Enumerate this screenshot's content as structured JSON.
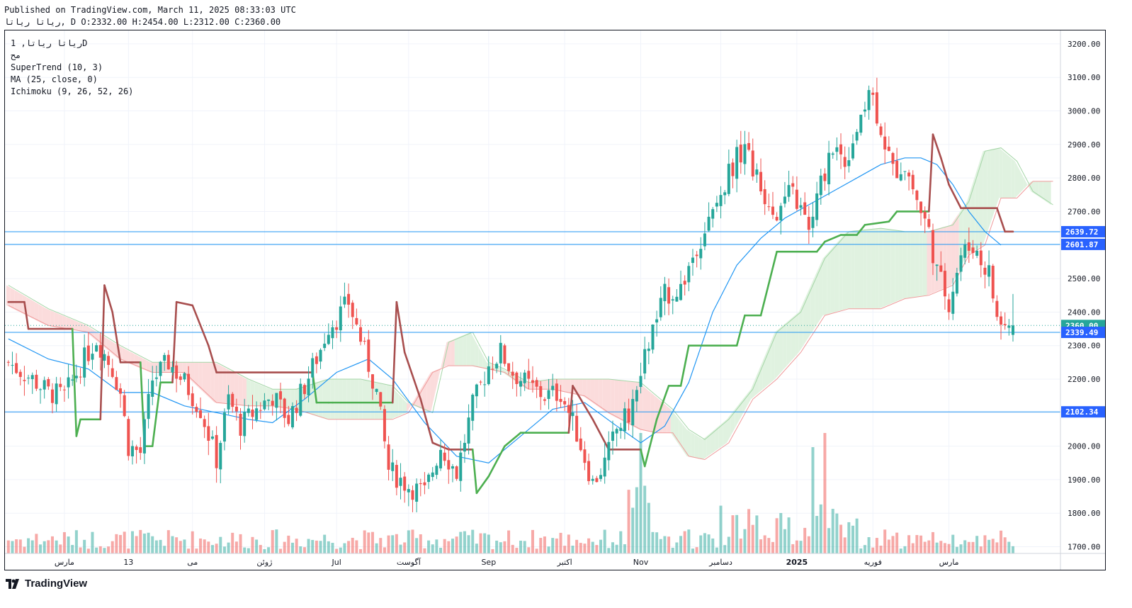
{
  "header": {
    "published": "Published on TradingView.com, March 11, 2025 08:33:03 UTC",
    "ohlc": "ریاتا ریاتا, D O:2332.00 H:2454.00 L:2312.00 C:2360.00"
  },
  "legend": {
    "symbol": "ریاتا ریاتا, 1D",
    "line2": "مح",
    "supertrend": "SuperTrend (10, 3)",
    "ma": "MA (25, close, 0)",
    "ichimoku": "Ichimoku (9, 26, 52, 26)"
  },
  "brand": "TradingView",
  "colors": {
    "up": "#26a69a",
    "down": "#ef5350",
    "supertrend_up": "#4caf50",
    "supertrend_down": "#a84e4e",
    "ma": "#2196f3",
    "hline": "#2196f3",
    "cloud_green": "#e0f2e0",
    "cloud_red": "#fbdcdc",
    "price_label": "#2962ff"
  },
  "chart_data": {
    "type": "candlestick",
    "ylim": [
      1680,
      3240
    ],
    "y_ticks": [
      "3200.00",
      "3100.00",
      "3000.00",
      "2900.00",
      "2800.00",
      "2700.00",
      "2600.00",
      "2500.00",
      "2400.00",
      "2300.00",
      "2200.00",
      "2100.00",
      "2000.00",
      "1900.00",
      "1800.00",
      "1700.00"
    ],
    "x_ticks": [
      "مارس",
      "13",
      "می",
      "ژوئن",
      "Jul",
      "آگوست",
      "Sep",
      "اکتبر",
      "Nov",
      "دسامبر",
      "2025",
      "فوریه",
      "مارس"
    ],
    "x_tick_index": [
      14,
      30,
      46,
      64,
      82,
      100,
      120,
      139,
      158,
      178,
      197,
      216,
      235
    ],
    "n_bars": 252,
    "last_ohlc": {
      "open": 2332.0,
      "high": 2454.0,
      "low": 2312.0,
      "close": 2360.0
    },
    "price_lines": [
      {
        "value": 2639.72,
        "label": "2639.72"
      },
      {
        "value": 2601.87,
        "label": "2601.87"
      },
      {
        "value": 2360.0,
        "label": "2360.00",
        "dotted": true
      },
      {
        "value": 2339.49,
        "label": "2339.49"
      },
      {
        "value": 2102.34,
        "label": "2102.34"
      }
    ],
    "close_path": [
      [
        0,
        2250
      ],
      [
        6,
        2200
      ],
      [
        10,
        2160
      ],
      [
        14,
        2150
      ],
      [
        18,
        2240
      ],
      [
        22,
        2320
      ],
      [
        26,
        2230
      ],
      [
        28,
        2160
      ],
      [
        30,
        2000
      ],
      [
        33,
        1980
      ],
      [
        36,
        2200
      ],
      [
        40,
        2250
      ],
      [
        44,
        2190
      ],
      [
        48,
        2110
      ],
      [
        52,
        1960
      ],
      [
        55,
        2140
      ],
      [
        58,
        2060
      ],
      [
        62,
        2110
      ],
      [
        66,
        2150
      ],
      [
        70,
        2080
      ],
      [
        74,
        2180
      ],
      [
        78,
        2290
      ],
      [
        80,
        2360
      ],
      [
        82,
        2380
      ],
      [
        85,
        2430
      ],
      [
        88,
        2320
      ],
      [
        92,
        2160
      ],
      [
        95,
        1930
      ],
      [
        100,
        1880
      ],
      [
        104,
        1860
      ],
      [
        108,
        2000
      ],
      [
        112,
        1920
      ],
      [
        116,
        2120
      ],
      [
        120,
        2240
      ],
      [
        123,
        2280
      ],
      [
        126,
        2220
      ],
      [
        130,
        2180
      ],
      [
        134,
        2150
      ],
      [
        138,
        2160
      ],
      [
        142,
        2040
      ],
      [
        146,
        1890
      ],
      [
        149,
        1950
      ],
      [
        152,
        2050
      ],
      [
        156,
        2110
      ],
      [
        160,
        2310
      ],
      [
        164,
        2450
      ],
      [
        168,
        2470
      ],
      [
        172,
        2600
      ],
      [
        176,
        2690
      ],
      [
        180,
        2820
      ],
      [
        184,
        2900
      ],
      [
        188,
        2760
      ],
      [
        192,
        2700
      ],
      [
        196,
        2760
      ],
      [
        200,
        2640
      ],
      [
        203,
        2780
      ],
      [
        206,
        2900
      ],
      [
        209,
        2850
      ],
      [
        212,
        2950
      ],
      [
        215,
        3080
      ],
      [
        218,
        2950
      ],
      [
        221,
        2820
      ],
      [
        224,
        2840
      ],
      [
        228,
        2700
      ],
      [
        230,
        2640
      ],
      [
        232,
        2520
      ],
      [
        235,
        2430
      ],
      [
        238,
        2570
      ],
      [
        241,
        2600
      ],
      [
        243,
        2550
      ],
      [
        245,
        2520
      ],
      [
        247,
        2380
      ],
      [
        249,
        2360
      ],
      [
        251,
        2360
      ]
    ],
    "ma_path": [
      [
        0,
        2320
      ],
      [
        10,
        2260
      ],
      [
        20,
        2230
      ],
      [
        28,
        2160
      ],
      [
        36,
        2160
      ],
      [
        44,
        2120
      ],
      [
        52,
        2100
      ],
      [
        60,
        2080
      ],
      [
        66,
        2070
      ],
      [
        74,
        2140
      ],
      [
        82,
        2220
      ],
      [
        90,
        2260
      ],
      [
        96,
        2200
      ],
      [
        104,
        2070
      ],
      [
        112,
        1970
      ],
      [
        120,
        1950
      ],
      [
        128,
        2030
      ],
      [
        136,
        2110
      ],
      [
        144,
        2130
      ],
      [
        152,
        2060
      ],
      [
        158,
        2010
      ],
      [
        164,
        2060
      ],
      [
        170,
        2190
      ],
      [
        176,
        2400
      ],
      [
        182,
        2540
      ],
      [
        188,
        2620
      ],
      [
        194,
        2680
      ],
      [
        200,
        2720
      ],
      [
        206,
        2760
      ],
      [
        212,
        2800
      ],
      [
        218,
        2840
      ],
      [
        224,
        2860
      ],
      [
        228,
        2860
      ],
      [
        232,
        2840
      ],
      [
        236,
        2780
      ],
      [
        240,
        2700
      ],
      [
        244,
        2640
      ],
      [
        248,
        2600
      ]
    ],
    "supertrend_path": [
      [
        0,
        2430,
        "d"
      ],
      [
        4,
        2430,
        "d"
      ],
      [
        5,
        2350,
        "d"
      ],
      [
        16,
        2350,
        "d"
      ],
      [
        17,
        2030,
        "u"
      ],
      [
        18,
        2080,
        "u"
      ],
      [
        23,
        2080,
        "u"
      ],
      [
        24,
        2480,
        "d"
      ],
      [
        26,
        2400,
        "d"
      ],
      [
        28,
        2250,
        "d"
      ],
      [
        33,
        2250,
        "d"
      ],
      [
        34,
        2000,
        "u"
      ],
      [
        36,
        2000,
        "u"
      ],
      [
        38,
        2190,
        "u"
      ],
      [
        41,
        2190,
        "u"
      ],
      [
        42,
        2430,
        "d"
      ],
      [
        46,
        2420,
        "d"
      ],
      [
        50,
        2300,
        "d"
      ],
      [
        52,
        2220,
        "d"
      ],
      [
        76,
        2220,
        "d"
      ],
      [
        77,
        2130,
        "u"
      ],
      [
        80,
        2130,
        "u"
      ],
      [
        81,
        2130,
        "u"
      ],
      [
        96,
        2130,
        "u"
      ],
      [
        97,
        2430,
        "d"
      ],
      [
        99,
        2280,
        "d"
      ],
      [
        103,
        2140,
        "d"
      ],
      [
        106,
        2010,
        "d"
      ],
      [
        110,
        1990,
        "d"
      ],
      [
        116,
        1990,
        "d"
      ],
      [
        117,
        1860,
        "u"
      ],
      [
        120,
        1910,
        "u"
      ],
      [
        124,
        2000,
        "u"
      ],
      [
        128,
        2040,
        "u"
      ],
      [
        140,
        2040,
        "u"
      ],
      [
        141,
        2180,
        "d"
      ],
      [
        146,
        2080,
        "d"
      ],
      [
        150,
        1990,
        "d"
      ],
      [
        158,
        1990,
        "d"
      ],
      [
        159,
        1940,
        "u"
      ],
      [
        162,
        2080,
        "u"
      ],
      [
        165,
        2180,
        "u"
      ],
      [
        168,
        2180,
        "u"
      ],
      [
        170,
        2300,
        "u"
      ],
      [
        182,
        2300,
        "u"
      ],
      [
        184,
        2390,
        "u"
      ],
      [
        188,
        2390,
        "u"
      ],
      [
        192,
        2580,
        "u"
      ],
      [
        202,
        2580,
        "u"
      ],
      [
        204,
        2610,
        "u"
      ],
      [
        208,
        2630,
        "u"
      ],
      [
        212,
        2630,
        "u"
      ],
      [
        214,
        2660,
        "u"
      ],
      [
        220,
        2670,
        "u"
      ],
      [
        222,
        2700,
        "u"
      ],
      [
        230,
        2700,
        "u"
      ],
      [
        231,
        2930,
        "d"
      ],
      [
        233,
        2860,
        "d"
      ],
      [
        235,
        2780,
        "d"
      ],
      [
        238,
        2710,
        "d"
      ],
      [
        247,
        2710,
        "d"
      ],
      [
        249,
        2640,
        "d"
      ],
      [
        251,
        2640,
        "d"
      ]
    ],
    "cloud_upper": [
      [
        0,
        2480
      ],
      [
        10,
        2410
      ],
      [
        20,
        2360
      ],
      [
        28,
        2300
      ],
      [
        36,
        2250
      ],
      [
        44,
        2250
      ],
      [
        52,
        2250
      ],
      [
        60,
        2200
      ],
      [
        66,
        2170
      ],
      [
        72,
        2170
      ],
      [
        80,
        2200
      ],
      [
        88,
        2200
      ],
      [
        96,
        2180
      ],
      [
        100,
        2130
      ],
      [
        106,
        2100
      ],
      [
        110,
        2310
      ],
      [
        116,
        2340
      ],
      [
        120,
        2250
      ],
      [
        124,
        2230
      ],
      [
        130,
        2190
      ],
      [
        136,
        2200
      ],
      [
        144,
        2200
      ],
      [
        150,
        2200
      ],
      [
        158,
        2190
      ],
      [
        162,
        2150
      ],
      [
        166,
        2110
      ],
      [
        170,
        2050
      ],
      [
        174,
        2020
      ],
      [
        180,
        2080
      ],
      [
        186,
        2170
      ],
      [
        192,
        2340
      ],
      [
        198,
        2400
      ],
      [
        204,
        2560
      ],
      [
        210,
        2640
      ],
      [
        218,
        2650
      ],
      [
        224,
        2640
      ],
      [
        230,
        2640
      ],
      [
        236,
        2660
      ],
      [
        240,
        2730
      ],
      [
        244,
        2880
      ],
      [
        248,
        2890
      ],
      [
        252,
        2850
      ],
      [
        256,
        2760
      ],
      [
        261,
        2720
      ]
    ],
    "cloud_lower": [
      [
        0,
        2420
      ],
      [
        10,
        2360
      ],
      [
        20,
        2340
      ],
      [
        28,
        2260
      ],
      [
        36,
        2220
      ],
      [
        44,
        2220
      ],
      [
        52,
        2130
      ],
      [
        60,
        2120
      ],
      [
        66,
        2120
      ],
      [
        72,
        2110
      ],
      [
        80,
        2080
      ],
      [
        88,
        2080
      ],
      [
        96,
        2080
      ],
      [
        100,
        2100
      ],
      [
        106,
        2220
      ],
      [
        110,
        2240
      ],
      [
        116,
        2240
      ],
      [
        120,
        2230
      ],
      [
        124,
        2220
      ],
      [
        130,
        2170
      ],
      [
        136,
        2170
      ],
      [
        144,
        2150
      ],
      [
        150,
        2100
      ],
      [
        158,
        2050
      ],
      [
        162,
        2040
      ],
      [
        166,
        2040
      ],
      [
        170,
        1970
      ],
      [
        174,
        1960
      ],
      [
        180,
        2010
      ],
      [
        186,
        2140
      ],
      [
        192,
        2200
      ],
      [
        198,
        2280
      ],
      [
        204,
        2390
      ],
      [
        210,
        2410
      ],
      [
        218,
        2410
      ],
      [
        224,
        2440
      ],
      [
        230,
        2450
      ],
      [
        236,
        2480
      ],
      [
        240,
        2570
      ],
      [
        244,
        2600
      ],
      [
        248,
        2740
      ],
      [
        252,
        2740
      ],
      [
        256,
        2790
      ],
      [
        261,
        2790
      ]
    ]
  }
}
